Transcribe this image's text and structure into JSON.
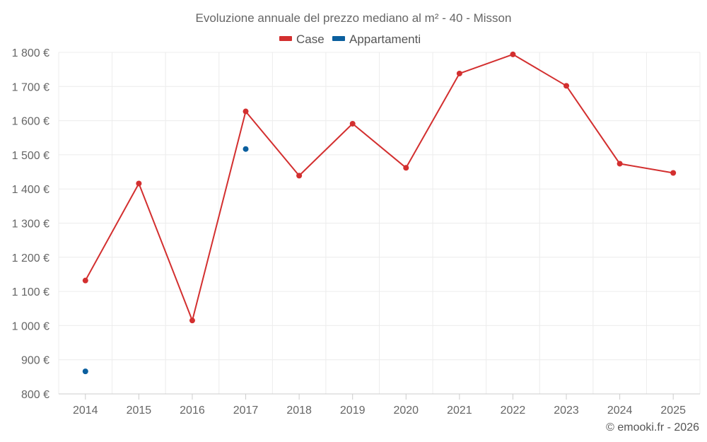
{
  "chart_data": {
    "type": "line",
    "title": "Evoluzione annuale del prezzo mediano al m² - 40 - Misson",
    "categories": [
      "2014",
      "2015",
      "2016",
      "2017",
      "2018",
      "2019",
      "2020",
      "2021",
      "2022",
      "2023",
      "2024",
      "2025"
    ],
    "y_ticks": [
      800,
      900,
      1000,
      1100,
      1200,
      1300,
      1400,
      1500,
      1600,
      1700,
      1800
    ],
    "y_tick_labels": [
      "800 €",
      "900 €",
      "1 000 €",
      "1 100 €",
      "1 200 €",
      "1 300 €",
      "1 400 €",
      "1 500 €",
      "1 600 €",
      "1 700 €",
      "1 800 €"
    ],
    "ylim": [
      800,
      1800
    ],
    "grid": true,
    "legend_position": "top-center",
    "series": [
      {
        "name": "Case",
        "color": "#d32f2f",
        "line": true,
        "values": [
          1132,
          1416,
          1015,
          1627,
          1439,
          1591,
          1462,
          1738,
          1794,
          1702,
          1474,
          1447
        ]
      },
      {
        "name": "Appartamenti",
        "color": "#0b5f9e",
        "line": false,
        "values": [
          866,
          null,
          null,
          1517,
          null,
          null,
          null,
          null,
          null,
          null,
          null,
          null
        ]
      }
    ]
  },
  "credit": "© emooki.fr - 2026"
}
